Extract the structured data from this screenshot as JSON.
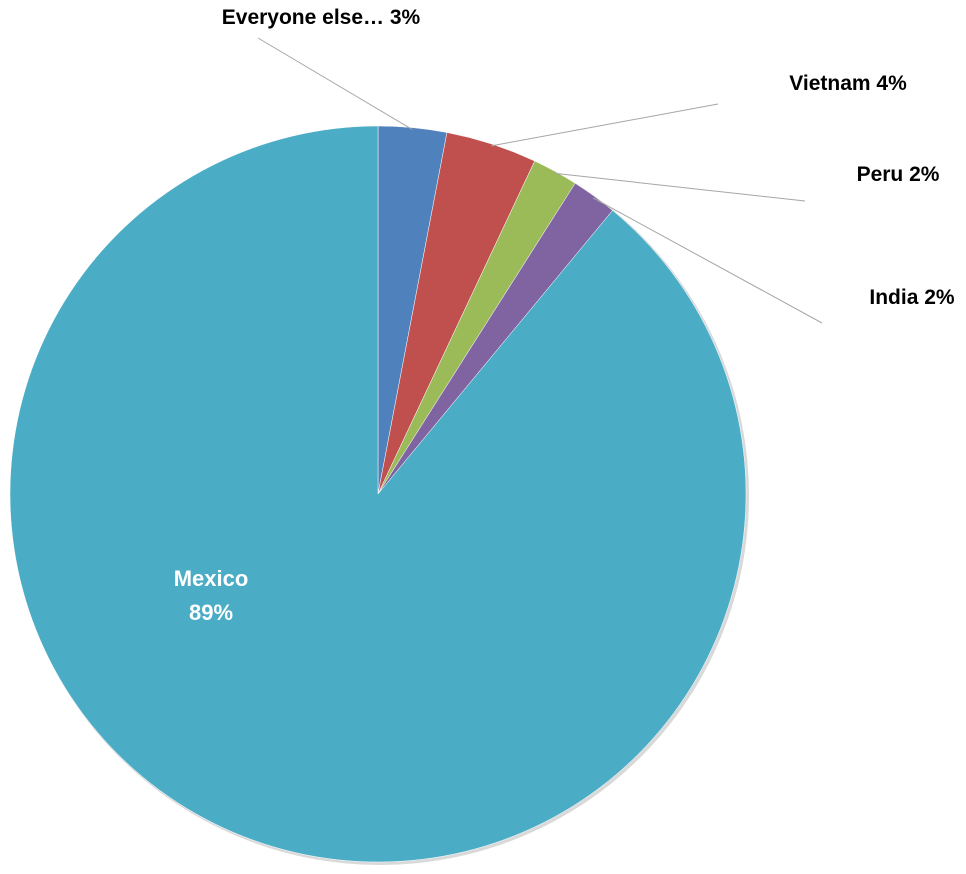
{
  "chart_data": {
    "type": "pie",
    "title": "",
    "start": "top",
    "direction": "clockwise",
    "slices": [
      {
        "label": "Everyone else…",
        "value": 3,
        "display": "Everyone else… 3%",
        "color": "#4f81bd",
        "label_placement": "outside"
      },
      {
        "label": "Vietnam",
        "value": 4,
        "display": "Vietnam 4%",
        "color": "#c0504d",
        "label_placement": "outside"
      },
      {
        "label": "Peru",
        "value": 2,
        "display": "Peru 2%",
        "color": "#9bbb59",
        "label_placement": "outside"
      },
      {
        "label": "India",
        "value": 2,
        "display": "India 2%",
        "color": "#8064a2",
        "label_placement": "outside"
      },
      {
        "label": "Mexico",
        "value": 89,
        "display": "89%",
        "color": "#4bacc6",
        "label_placement": "inside"
      }
    ],
    "legend": "none"
  }
}
